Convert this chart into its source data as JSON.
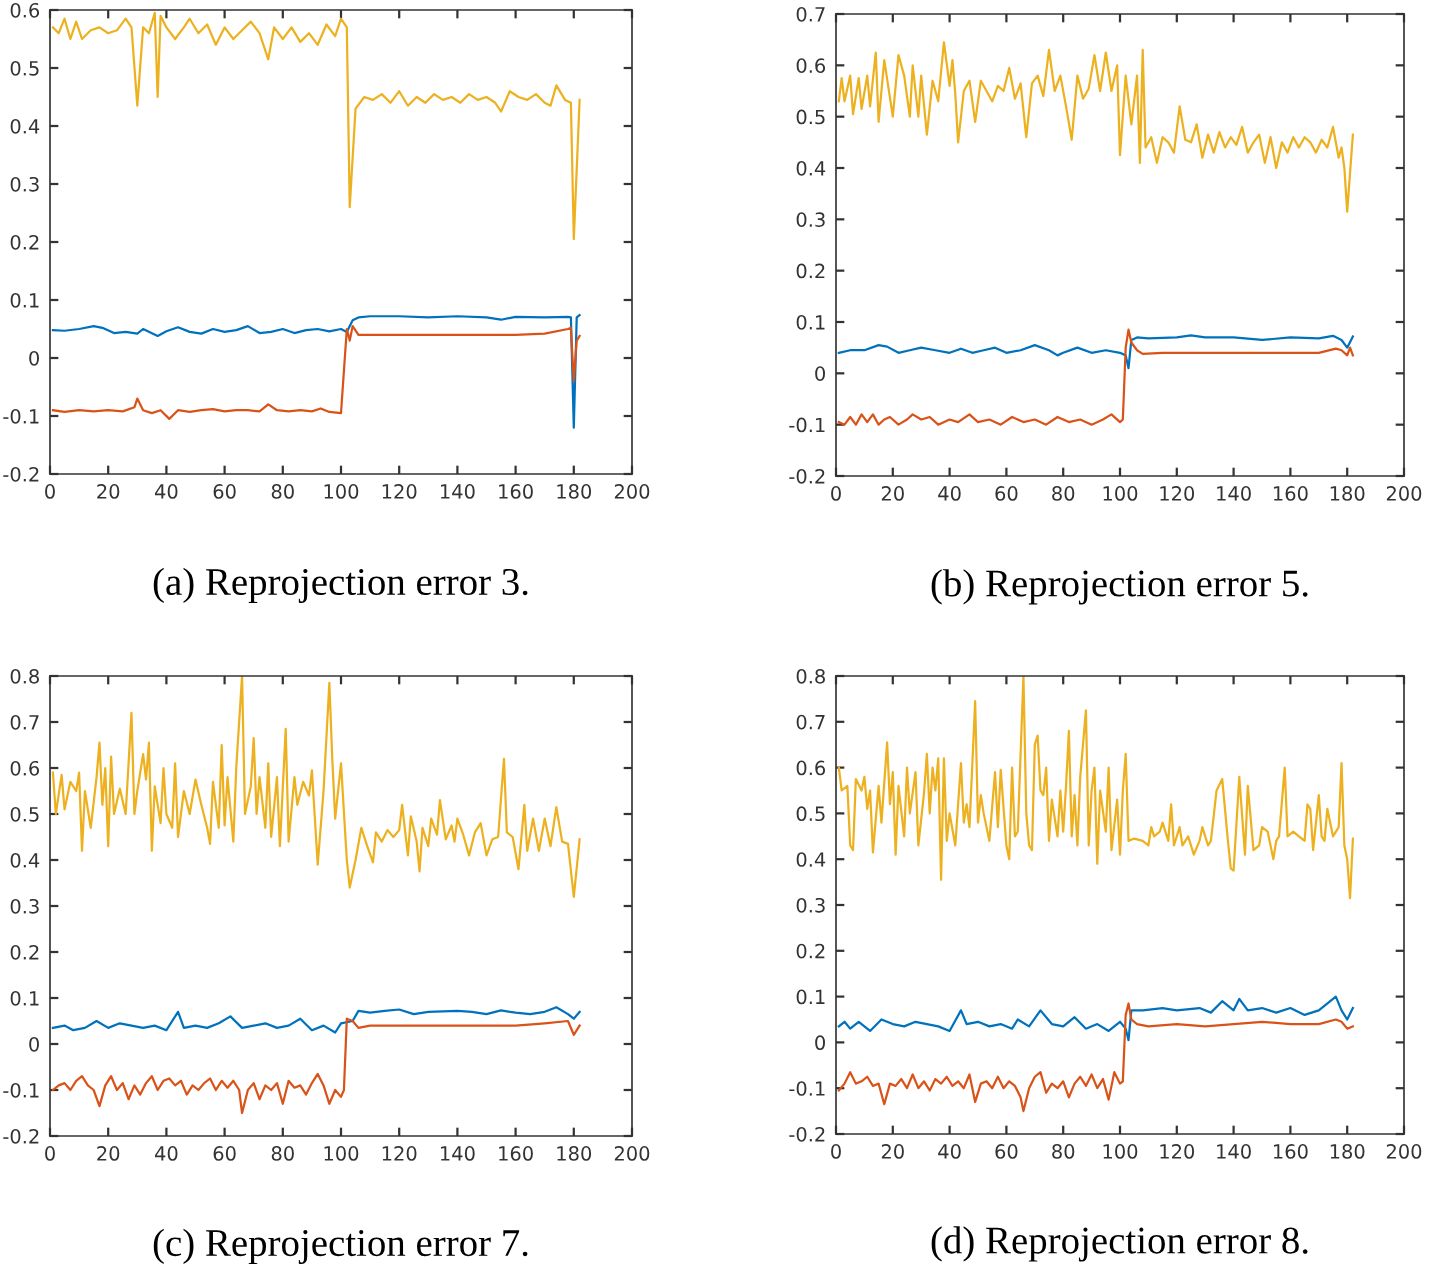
{
  "chart_data": [
    {
      "type": "line",
      "title": "(a) Reprojection error 3.",
      "xlim": [
        0,
        200
      ],
      "xticks": [
        0,
        20,
        40,
        60,
        80,
        100,
        120,
        140,
        160,
        180,
        200
      ],
      "ylim": [
        -0.2,
        0.6
      ],
      "yticks": [
        -0.2,
        -0.1,
        0,
        0.1,
        0.2,
        0.3,
        0.4,
        0.5,
        0.6
      ],
      "grid": false,
      "legend": false,
      "series": [
        {
          "color": "#edb120",
          "x": [
            1,
            3,
            5,
            7,
            9,
            11,
            14,
            17,
            20,
            23,
            26,
            28,
            30,
            32,
            34,
            36,
            37,
            38,
            40,
            43,
            46,
            48,
            51,
            54,
            57,
            60,
            63,
            66,
            69,
            72,
            75,
            77,
            80,
            83,
            86,
            89,
            92,
            95,
            98,
            100,
            102,
            103,
            105,
            108,
            111,
            114,
            117,
            120,
            123,
            126,
            129,
            132,
            135,
            138,
            141,
            144,
            147,
            150,
            153,
            155,
            158,
            161,
            164,
            167,
            170,
            172,
            174,
            177,
            179,
            180,
            182
          ],
          "values": [
            0.57,
            0.56,
            0.585,
            0.55,
            0.58,
            0.55,
            0.565,
            0.57,
            0.56,
            0.565,
            0.585,
            0.57,
            0.435,
            0.57,
            0.56,
            0.595,
            0.45,
            0.59,
            0.57,
            0.55,
            0.57,
            0.585,
            0.56,
            0.575,
            0.54,
            0.57,
            0.55,
            0.565,
            0.58,
            0.56,
            0.515,
            0.57,
            0.55,
            0.57,
            0.545,
            0.56,
            0.54,
            0.575,
            0.555,
            0.585,
            0.57,
            0.26,
            0.43,
            0.45,
            0.445,
            0.455,
            0.44,
            0.46,
            0.435,
            0.45,
            0.44,
            0.455,
            0.445,
            0.45,
            0.44,
            0.455,
            0.445,
            0.45,
            0.44,
            0.425,
            0.46,
            0.45,
            0.445,
            0.455,
            0.44,
            0.435,
            0.47,
            0.445,
            0.44,
            0.205,
            0.445
          ]
        },
        {
          "color": "#0072bd",
          "x": [
            1,
            5,
            10,
            15,
            18,
            22,
            26,
            30,
            32,
            37,
            40,
            44,
            48,
            52,
            56,
            60,
            64,
            68,
            72,
            76,
            80,
            84,
            88,
            92,
            96,
            100,
            102,
            104,
            106,
            110,
            120,
            130,
            140,
            150,
            155,
            160,
            170,
            178,
            179,
            180,
            181,
            182
          ],
          "values": [
            0.048,
            0.047,
            0.05,
            0.055,
            0.052,
            0.043,
            0.045,
            0.042,
            0.05,
            0.038,
            0.046,
            0.053,
            0.045,
            0.042,
            0.05,
            0.045,
            0.048,
            0.055,
            0.043,
            0.045,
            0.05,
            0.043,
            0.048,
            0.05,
            0.046,
            0.05,
            0.045,
            0.065,
            0.07,
            0.072,
            0.072,
            0.07,
            0.072,
            0.07,
            0.066,
            0.071,
            0.07,
            0.071,
            0.07,
            -0.12,
            0.07,
            0.074
          ]
        },
        {
          "color": "#d95319",
          "x": [
            1,
            5,
            10,
            15,
            20,
            25,
            29,
            30,
            32,
            35,
            38,
            41,
            44,
            48,
            52,
            56,
            60,
            64,
            68,
            72,
            75,
            78,
            82,
            86,
            90,
            93,
            96,
            100,
            102,
            103,
            104,
            106,
            108,
            120,
            140,
            160,
            170,
            178,
            179,
            180,
            181,
            182
          ],
          "values": [
            -0.09,
            -0.093,
            -0.09,
            -0.092,
            -0.09,
            -0.092,
            -0.085,
            -0.07,
            -0.09,
            -0.095,
            -0.09,
            -0.105,
            -0.09,
            -0.093,
            -0.09,
            -0.088,
            -0.092,
            -0.09,
            -0.09,
            -0.092,
            -0.08,
            -0.09,
            -0.092,
            -0.09,
            -0.092,
            -0.087,
            -0.093,
            -0.095,
            0.05,
            0.03,
            0.055,
            0.04,
            0.04,
            0.04,
            0.04,
            0.04,
            0.042,
            0.05,
            0.052,
            -0.04,
            0.03,
            0.038
          ]
        }
      ]
    },
    {
      "type": "line",
      "title": "(b) Reprojection error 5.",
      "xlim": [
        0,
        200
      ],
      "xticks": [
        0,
        20,
        40,
        60,
        80,
        100,
        120,
        140,
        160,
        180,
        200
      ],
      "ylim": [
        -0.2,
        0.7
      ],
      "yticks": [
        -0.2,
        -0.1,
        0,
        0.1,
        0.2,
        0.3,
        0.4,
        0.5,
        0.6,
        0.7
      ],
      "grid": false,
      "legend": false,
      "series": [
        {
          "color": "#edb120",
          "x": [
            1,
            2,
            3,
            5,
            6,
            8,
            9,
            11,
            12,
            14,
            15,
            17,
            20,
            22,
            24,
            26,
            27,
            29,
            30,
            32,
            34,
            36,
            38,
            40,
            41,
            42,
            43,
            45,
            47,
            49,
            51,
            53,
            55,
            57,
            59,
            61,
            63,
            65,
            67,
            69,
            71,
            73,
            75,
            77,
            79,
            81,
            83,
            85,
            87,
            89,
            91,
            93,
            95,
            97,
            99,
            100,
            102,
            104,
            106,
            107,
            108,
            109,
            111,
            113,
            115,
            117,
            119,
            121,
            123,
            125,
            127,
            129,
            131,
            133,
            135,
            137,
            139,
            141,
            143,
            145,
            147,
            149,
            151,
            153,
            155,
            157,
            159,
            161,
            163,
            165,
            167,
            169,
            171,
            173,
            175,
            177,
            178,
            179,
            180,
            182
          ],
          "values": [
            0.53,
            0.575,
            0.53,
            0.58,
            0.505,
            0.575,
            0.515,
            0.58,
            0.52,
            0.625,
            0.49,
            0.61,
            0.5,
            0.62,
            0.58,
            0.5,
            0.6,
            0.5,
            0.58,
            0.465,
            0.57,
            0.53,
            0.645,
            0.56,
            0.61,
            0.545,
            0.45,
            0.55,
            0.57,
            0.49,
            0.57,
            0.55,
            0.53,
            0.56,
            0.55,
            0.595,
            0.535,
            0.565,
            0.46,
            0.565,
            0.58,
            0.54,
            0.63,
            0.55,
            0.58,
            0.52,
            0.455,
            0.58,
            0.535,
            0.555,
            0.62,
            0.55,
            0.625,
            0.55,
            0.6,
            0.425,
            0.58,
            0.485,
            0.58,
            0.41,
            0.63,
            0.44,
            0.46,
            0.41,
            0.46,
            0.45,
            0.43,
            0.52,
            0.455,
            0.45,
            0.485,
            0.42,
            0.465,
            0.43,
            0.47,
            0.44,
            0.46,
            0.445,
            0.48,
            0.43,
            0.45,
            0.465,
            0.41,
            0.46,
            0.4,
            0.45,
            0.43,
            0.46,
            0.44,
            0.46,
            0.45,
            0.43,
            0.455,
            0.44,
            0.48,
            0.42,
            0.44,
            0.4,
            0.315,
            0.465
          ]
        },
        {
          "color": "#0072bd",
          "x": [
            1,
            5,
            10,
            15,
            18,
            22,
            26,
            30,
            35,
            40,
            44,
            48,
            52,
            56,
            60,
            65,
            70,
            75,
            78,
            80,
            85,
            90,
            95,
            100,
            102,
            103,
            104,
            106,
            110,
            120,
            125,
            130,
            140,
            150,
            160,
            170,
            175,
            178,
            180,
            182
          ],
          "values": [
            0.04,
            0.045,
            0.045,
            0.055,
            0.052,
            0.04,
            0.045,
            0.05,
            0.045,
            0.04,
            0.048,
            0.04,
            0.045,
            0.05,
            0.04,
            0.045,
            0.055,
            0.045,
            0.035,
            0.04,
            0.05,
            0.04,
            0.045,
            0.04,
            0.035,
            0.01,
            0.065,
            0.07,
            0.068,
            0.07,
            0.074,
            0.07,
            0.07,
            0.065,
            0.07,
            0.068,
            0.073,
            0.065,
            0.05,
            0.072
          ]
        },
        {
          "color": "#d95319",
          "x": [
            1,
            3,
            5,
            7,
            9,
            11,
            13,
            15,
            17,
            19,
            22,
            25,
            27,
            30,
            33,
            36,
            40,
            43,
            47,
            50,
            54,
            58,
            62,
            66,
            70,
            74,
            78,
            82,
            86,
            90,
            94,
            97,
            100,
            101,
            102,
            103,
            104,
            106,
            108,
            115,
            130,
            150,
            170,
            176,
            178,
            180,
            181,
            182
          ],
          "values": [
            -0.095,
            -0.1,
            -0.085,
            -0.1,
            -0.08,
            -0.095,
            -0.08,
            -0.1,
            -0.09,
            -0.085,
            -0.1,
            -0.09,
            -0.08,
            -0.09,
            -0.085,
            -0.1,
            -0.09,
            -0.095,
            -0.08,
            -0.095,
            -0.09,
            -0.1,
            -0.085,
            -0.095,
            -0.09,
            -0.1,
            -0.085,
            -0.095,
            -0.09,
            -0.1,
            -0.09,
            -0.08,
            -0.095,
            -0.09,
            0.05,
            0.085,
            0.06,
            0.045,
            0.038,
            0.04,
            0.04,
            0.04,
            0.04,
            0.048,
            0.045,
            0.035,
            0.05,
            0.035
          ]
        }
      ]
    },
    {
      "type": "line",
      "title": "(c) Reprojection error 7.",
      "xlim": [
        0,
        200
      ],
      "xticks": [
        0,
        20,
        40,
        60,
        80,
        100,
        120,
        140,
        160,
        180,
        200
      ],
      "ylim": [
        -0.2,
        0.8
      ],
      "yticks": [
        -0.2,
        -0.1,
        0,
        0.1,
        0.2,
        0.3,
        0.4,
        0.5,
        0.6,
        0.7,
        0.8
      ],
      "grid": false,
      "legend": false,
      "series": [
        {
          "color": "#edb120",
          "x": [
            1,
            2,
            4,
            5,
            7,
            9,
            10,
            11,
            12,
            14,
            16,
            17,
            18,
            19,
            20,
            21,
            22,
            24,
            26,
            28,
            29,
            30,
            32,
            33,
            34,
            35,
            36,
            38,
            39,
            40,
            42,
            43,
            44,
            46,
            48,
            50,
            52,
            54,
            55,
            56,
            58,
            59,
            60,
            61,
            63,
            64,
            66,
            67,
            69,
            70,
            71,
            72,
            74,
            75,
            76,
            78,
            79,
            81,
            82,
            84,
            85,
            87,
            89,
            90,
            92,
            94,
            96,
            97,
            98,
            100,
            102,
            103,
            105,
            107,
            109,
            111,
            112,
            114,
            116,
            118,
            120,
            121,
            123,
            124,
            126,
            127,
            128,
            130,
            131,
            133,
            134,
            136,
            138,
            139,
            140,
            142,
            144,
            146,
            148,
            150,
            152,
            154,
            156,
            157,
            159,
            161,
            163,
            164,
            166,
            168,
            170,
            172,
            174,
            176,
            178,
            180,
            182
          ],
          "values": [
            0.59,
            0.5,
            0.585,
            0.51,
            0.57,
            0.55,
            0.59,
            0.42,
            0.55,
            0.47,
            0.58,
            0.655,
            0.52,
            0.6,
            0.43,
            0.625,
            0.5,
            0.555,
            0.5,
            0.72,
            0.5,
            0.55,
            0.63,
            0.575,
            0.655,
            0.42,
            0.56,
            0.48,
            0.6,
            0.5,
            0.47,
            0.61,
            0.45,
            0.55,
            0.5,
            0.575,
            0.52,
            0.47,
            0.435,
            0.57,
            0.47,
            0.65,
            0.475,
            0.58,
            0.44,
            0.6,
            0.8,
            0.5,
            0.56,
            0.665,
            0.5,
            0.58,
            0.47,
            0.61,
            0.45,
            0.58,
            0.43,
            0.685,
            0.44,
            0.58,
            0.52,
            0.57,
            0.54,
            0.595,
            0.39,
            0.55,
            0.785,
            0.62,
            0.49,
            0.61,
            0.4,
            0.34,
            0.4,
            0.47,
            0.43,
            0.395,
            0.46,
            0.44,
            0.465,
            0.45,
            0.465,
            0.52,
            0.41,
            0.495,
            0.44,
            0.375,
            0.47,
            0.43,
            0.49,
            0.455,
            0.53,
            0.445,
            0.475,
            0.44,
            0.49,
            0.455,
            0.41,
            0.46,
            0.48,
            0.41,
            0.445,
            0.45,
            0.62,
            0.46,
            0.45,
            0.38,
            0.52,
            0.42,
            0.49,
            0.42,
            0.49,
            0.43,
            0.515,
            0.44,
            0.435,
            0.32,
            0.445
          ]
        },
        {
          "color": "#0072bd",
          "x": [
            1,
            5,
            8,
            12,
            16,
            20,
            24,
            28,
            32,
            36,
            40,
            44,
            46,
            50,
            54,
            58,
            62,
            66,
            70,
            74,
            78,
            82,
            86,
            90,
            94,
            98,
            100,
            104,
            106,
            110,
            115,
            120,
            125,
            130,
            140,
            145,
            150,
            155,
            160,
            165,
            170,
            174,
            178,
            180,
            182
          ],
          "values": [
            0.035,
            0.04,
            0.03,
            0.035,
            0.05,
            0.035,
            0.045,
            0.04,
            0.035,
            0.04,
            0.03,
            0.07,
            0.035,
            0.04,
            0.035,
            0.045,
            0.06,
            0.035,
            0.04,
            0.045,
            0.035,
            0.04,
            0.055,
            0.03,
            0.04,
            0.025,
            0.045,
            0.05,
            0.072,
            0.068,
            0.072,
            0.075,
            0.065,
            0.07,
            0.072,
            0.07,
            0.065,
            0.073,
            0.068,
            0.065,
            0.07,
            0.08,
            0.065,
            0.055,
            0.07
          ]
        },
        {
          "color": "#d95319",
          "x": [
            1,
            3,
            5,
            7,
            9,
            11,
            13,
            15,
            17,
            19,
            21,
            23,
            25,
            27,
            29,
            31,
            33,
            35,
            37,
            39,
            41,
            43,
            45,
            47,
            49,
            51,
            53,
            55,
            57,
            59,
            61,
            63,
            65,
            66,
            68,
            70,
            72,
            74,
            76,
            78,
            80,
            82,
            84,
            86,
            88,
            90,
            92,
            94,
            96,
            98,
            100,
            101,
            102,
            104,
            106,
            110,
            120,
            130,
            140,
            150,
            160,
            170,
            178,
            180,
            182
          ],
          "values": [
            -0.1,
            -0.09,
            -0.085,
            -0.1,
            -0.08,
            -0.07,
            -0.09,
            -0.1,
            -0.135,
            -0.09,
            -0.07,
            -0.1,
            -0.085,
            -0.12,
            -0.09,
            -0.11,
            -0.085,
            -0.07,
            -0.1,
            -0.08,
            -0.075,
            -0.09,
            -0.08,
            -0.11,
            -0.09,
            -0.1,
            -0.085,
            -0.075,
            -0.1,
            -0.08,
            -0.095,
            -0.08,
            -0.1,
            -0.15,
            -0.1,
            -0.085,
            -0.12,
            -0.09,
            -0.1,
            -0.085,
            -0.13,
            -0.08,
            -0.095,
            -0.09,
            -0.11,
            -0.085,
            -0.065,
            -0.09,
            -0.13,
            -0.1,
            -0.115,
            -0.1,
            0.055,
            0.05,
            0.035,
            0.04,
            0.04,
            0.04,
            0.04,
            0.04,
            0.04,
            0.045,
            0.05,
            0.02,
            0.04
          ]
        }
      ]
    },
    {
      "type": "line",
      "title": "(d) Reprojection error 8.",
      "xlim": [
        0,
        200
      ],
      "xticks": [
        0,
        20,
        40,
        60,
        80,
        100,
        120,
        140,
        160,
        180,
        200
      ],
      "ylim": [
        -0.2,
        0.8
      ],
      "yticks": [
        -0.2,
        -0.1,
        0,
        0.1,
        0.2,
        0.3,
        0.4,
        0.5,
        0.6,
        0.7,
        0.8
      ],
      "grid": false,
      "legend": false,
      "series": [
        {
          "color": "#edb120",
          "x": [
            1,
            2,
            4,
            5,
            6,
            7,
            9,
            10,
            11,
            12,
            13,
            15,
            16,
            18,
            19,
            20,
            21,
            22,
            24,
            25,
            26,
            28,
            29,
            31,
            32,
            33,
            34,
            35,
            36,
            37,
            38,
            39,
            40,
            42,
            44,
            45,
            46,
            47,
            49,
            50,
            51,
            52,
            54,
            56,
            57,
            58,
            60,
            61,
            62,
            63,
            64,
            66,
            67,
            68,
            69,
            70,
            71,
            72,
            73,
            74,
            75,
            76,
            78,
            79,
            80,
            81,
            82,
            83,
            84,
            85,
            86,
            88,
            89,
            90,
            91,
            92,
            93,
            95,
            96,
            97,
            99,
            100,
            101,
            102,
            103,
            105,
            108,
            110,
            111,
            112,
            114,
            115,
            117,
            118,
            119,
            121,
            122,
            124,
            126,
            128,
            129,
            131,
            132,
            134,
            136,
            138,
            139,
            140,
            142,
            144,
            145,
            147,
            149,
            150,
            152,
            154,
            155,
            156,
            158,
            159,
            161,
            163,
            165,
            166,
            167,
            168,
            170,
            171,
            172,
            173,
            175,
            177,
            178,
            179,
            180,
            181,
            182
          ],
          "values": [
            0.6,
            0.55,
            0.56,
            0.43,
            0.42,
            0.575,
            0.55,
            0.58,
            0.51,
            0.55,
            0.415,
            0.56,
            0.48,
            0.655,
            0.52,
            0.59,
            0.41,
            0.56,
            0.45,
            0.6,
            0.5,
            0.59,
            0.43,
            0.545,
            0.63,
            0.5,
            0.6,
            0.55,
            0.62,
            0.355,
            0.62,
            0.44,
            0.5,
            0.43,
            0.61,
            0.48,
            0.52,
            0.47,
            0.745,
            0.48,
            0.54,
            0.5,
            0.44,
            0.59,
            0.47,
            0.595,
            0.43,
            0.4,
            0.6,
            0.45,
            0.46,
            0.8,
            0.5,
            0.43,
            0.42,
            0.65,
            0.67,
            0.55,
            0.54,
            0.6,
            0.44,
            0.53,
            0.45,
            0.55,
            0.46,
            0.56,
            0.68,
            0.45,
            0.54,
            0.43,
            0.58,
            0.725,
            0.43,
            0.55,
            0.6,
            0.39,
            0.55,
            0.46,
            0.6,
            0.42,
            0.53,
            0.41,
            0.55,
            0.63,
            0.44,
            0.445,
            0.44,
            0.43,
            0.47,
            0.45,
            0.46,
            0.48,
            0.44,
            0.52,
            0.43,
            0.47,
            0.43,
            0.45,
            0.41,
            0.44,
            0.47,
            0.43,
            0.44,
            0.55,
            0.575,
            0.44,
            0.38,
            0.375,
            0.58,
            0.41,
            0.56,
            0.42,
            0.43,
            0.47,
            0.46,
            0.4,
            0.44,
            0.45,
            0.6,
            0.45,
            0.46,
            0.45,
            0.44,
            0.52,
            0.51,
            0.42,
            0.54,
            0.45,
            0.44,
            0.51,
            0.45,
            0.47,
            0.61,
            0.43,
            0.4,
            0.315,
            0.445
          ]
        },
        {
          "color": "#0072bd",
          "x": [
            1,
            3,
            5,
            8,
            12,
            16,
            20,
            24,
            28,
            32,
            36,
            40,
            44,
            46,
            50,
            54,
            58,
            62,
            64,
            68,
            72,
            76,
            80,
            84,
            88,
            92,
            96,
            100,
            102,
            103,
            104,
            108,
            115,
            120,
            128,
            132,
            136,
            140,
            142,
            145,
            150,
            155,
            160,
            165,
            170,
            176,
            178,
            180,
            182
          ],
          "values": [
            0.035,
            0.045,
            0.03,
            0.045,
            0.025,
            0.05,
            0.04,
            0.035,
            0.045,
            0.04,
            0.035,
            0.025,
            0.07,
            0.04,
            0.045,
            0.035,
            0.04,
            0.03,
            0.05,
            0.035,
            0.07,
            0.04,
            0.035,
            0.055,
            0.03,
            0.04,
            0.025,
            0.045,
            0.03,
            0.005,
            0.07,
            0.07,
            0.075,
            0.07,
            0.075,
            0.065,
            0.09,
            0.07,
            0.095,
            0.07,
            0.075,
            0.065,
            0.075,
            0.06,
            0.07,
            0.1,
            0.07,
            0.05,
            0.075
          ]
        },
        {
          "color": "#d95319",
          "x": [
            1,
            3,
            5,
            7,
            9,
            11,
            13,
            15,
            17,
            19,
            21,
            23,
            25,
            27,
            29,
            31,
            33,
            35,
            37,
            39,
            41,
            43,
            45,
            47,
            49,
            51,
            53,
            55,
            57,
            59,
            61,
            63,
            65,
            66,
            68,
            70,
            72,
            74,
            76,
            78,
            80,
            82,
            84,
            86,
            88,
            90,
            92,
            94,
            96,
            98,
            100,
            101,
            102,
            103,
            104,
            106,
            110,
            120,
            130,
            140,
            150,
            160,
            170,
            176,
            178,
            180,
            182
          ],
          "values": [
            -0.105,
            -0.09,
            -0.065,
            -0.09,
            -0.085,
            -0.075,
            -0.095,
            -0.09,
            -0.135,
            -0.09,
            -0.095,
            -0.08,
            -0.1,
            -0.07,
            -0.1,
            -0.085,
            -0.105,
            -0.08,
            -0.09,
            -0.075,
            -0.095,
            -0.085,
            -0.1,
            -0.07,
            -0.13,
            -0.09,
            -0.085,
            -0.1,
            -0.075,
            -0.1,
            -0.085,
            -0.095,
            -0.12,
            -0.15,
            -0.1,
            -0.075,
            -0.065,
            -0.11,
            -0.09,
            -0.1,
            -0.085,
            -0.12,
            -0.09,
            -0.075,
            -0.095,
            -0.07,
            -0.1,
            -0.08,
            -0.125,
            -0.065,
            -0.09,
            -0.085,
            0.06,
            0.085,
            0.05,
            0.04,
            0.035,
            0.04,
            0.035,
            0.04,
            0.045,
            0.04,
            0.04,
            0.05,
            0.045,
            0.03,
            0.035
          ]
        }
      ]
    }
  ]
}
